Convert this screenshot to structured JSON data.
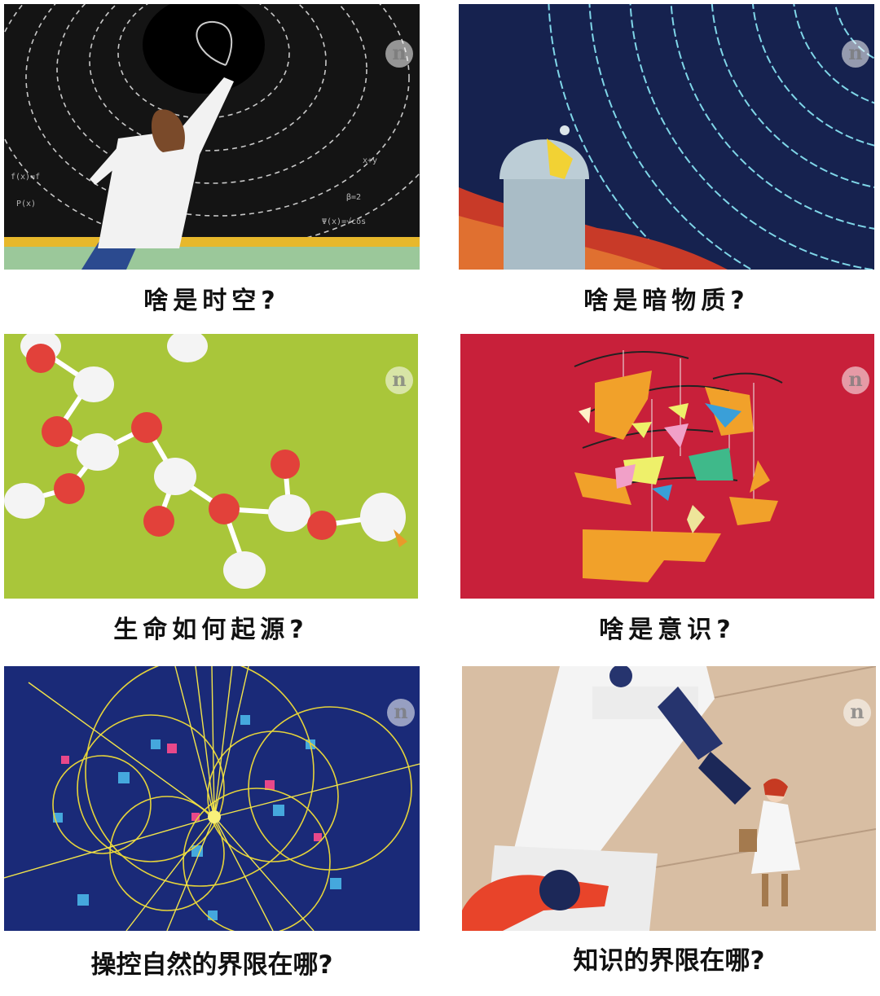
{
  "panels": [
    {
      "caption": "啥是时空?",
      "badge": "n",
      "illustration": "scientist-blackboard-spacetime"
    },
    {
      "caption": "啥是暗物质?",
      "badge": "n",
      "illustration": "observatory-star-trails"
    },
    {
      "caption": "生命如何起源?",
      "badge": "n",
      "illustration": "molecule-chain"
    },
    {
      "caption": "啥是意识?",
      "badge": "n",
      "illustration": "head-mobile-shapes"
    },
    {
      "caption": "操控自然的界限在哪?",
      "badge": "n",
      "illustration": "particle-collision-tracks"
    },
    {
      "caption": "知识的界限在哪?",
      "badge": "n",
      "illustration": "scientist-microscope"
    }
  ],
  "colors": {
    "blackboard": "#141414",
    "night_sky": "#16224f",
    "lime": "#a9c63a",
    "crimson": "#c8203a",
    "collider_blue": "#1a2a78",
    "beige": "#d8bea3",
    "caption_text": "#111111"
  }
}
